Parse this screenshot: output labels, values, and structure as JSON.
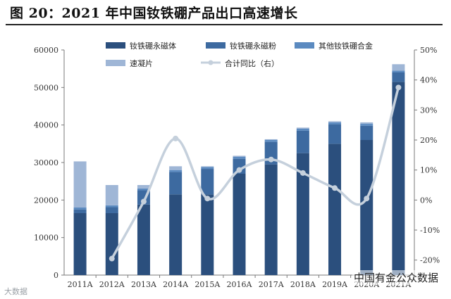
{
  "header": {
    "title": "图 20：2021 年中国钕铁硼产品出口高速增长"
  },
  "chart_data": {
    "type": "bar",
    "stacked": true,
    "title": "图 20：2021 年中国钕铁硼产品出口高速增长",
    "categories": [
      "2011A",
      "2012A",
      "2013A",
      "2014A",
      "2015A",
      "2016A",
      "2017A",
      "2018A",
      "2019A",
      "2020A",
      "2021A"
    ],
    "series": [
      {
        "name": "钕铁硼永磁体",
        "color": "#2b4f7d",
        "values": [
          16500,
          16500,
          18800,
          21500,
          21500,
          27000,
          29500,
          32500,
          35000,
          36000,
          51500
        ]
      },
      {
        "name": "钕铁硼永磁粉",
        "color": "#3d6aa0",
        "values": [
          1000,
          1600,
          3800,
          6000,
          6800,
          4000,
          6000,
          6000,
          5200,
          3800,
          2500
        ]
      },
      {
        "name": "其他钕铁硼合金",
        "color": "#5b8ac0",
        "values": [
          500,
          500,
          500,
          500,
          500,
          500,
          500,
          500,
          500,
          500,
          500
        ]
      },
      {
        "name": "速凝片",
        "color": "#9fb6d6",
        "values": [
          12300,
          5400,
          900,
          1000,
          200,
          300,
          200,
          300,
          300,
          400,
          1700
        ]
      }
    ],
    "line": {
      "name": "合计同比（右）",
      "color": "#c5d0dc",
      "axis": "right",
      "values": [
        null,
        -19.5,
        -0.5,
        20.5,
        0.5,
        10,
        13.5,
        9,
        4,
        0.5,
        37.5
      ]
    },
    "yleft": {
      "min": 0,
      "max": 60000,
      "ticks": [
        "0",
        "10000",
        "20000",
        "30000",
        "40000",
        "50000",
        "60000"
      ]
    },
    "yright": {
      "min": -25,
      "max": 50,
      "ticks": [
        "-20%",
        "-10%",
        "0%",
        "10%",
        "20%",
        "30%",
        "40%",
        "50%"
      ]
    },
    "legend": {
      "position": "top"
    }
  },
  "watermarks": {
    "right": "中国有金公众数据",
    "left": "大数据"
  }
}
